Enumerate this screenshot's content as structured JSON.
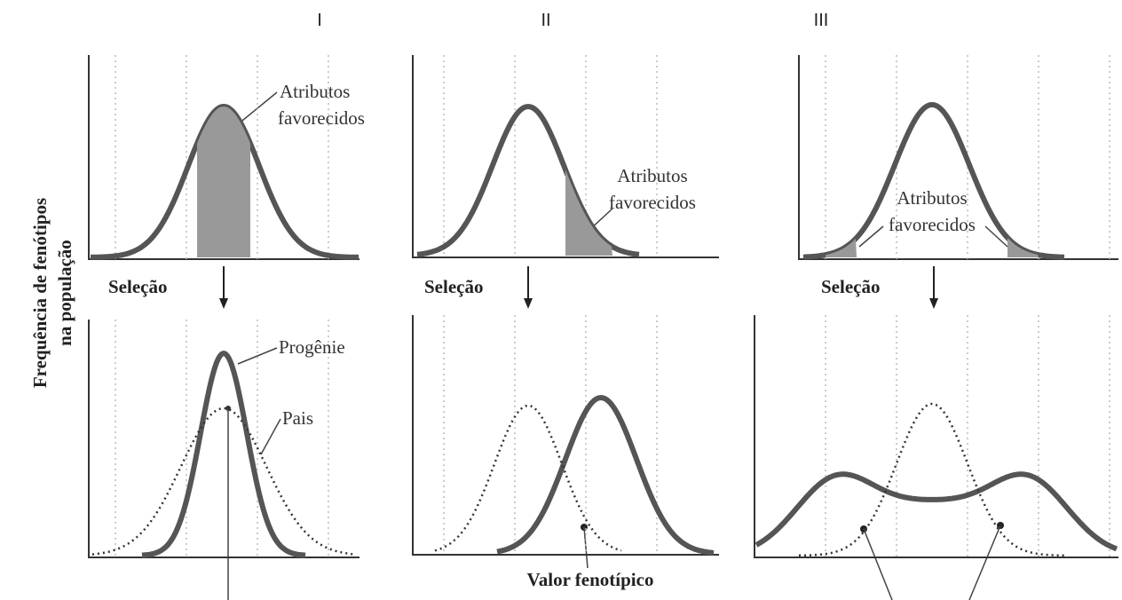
{
  "column_labels": [
    "I",
    "II",
    "III"
  ],
  "y_axis_label": [
    "Frequência de fenótipos",
    "na população"
  ],
  "panels": [
    {
      "favored": [
        "Atributos",
        "favorecidos"
      ],
      "selection": "Seleção",
      "offspring": "Progênie",
      "parents": "Pais"
    },
    {
      "favored": [
        "Atributos",
        "favorecidos"
      ],
      "selection": "Seleção",
      "x_axis_label": "Valor fenotípico"
    },
    {
      "favored": [
        "Atributos",
        "favorecidos"
      ],
      "selection": "Seleção"
    }
  ]
}
